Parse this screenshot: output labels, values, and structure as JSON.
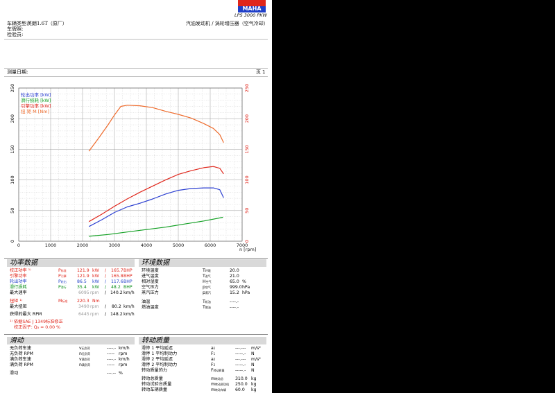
{
  "header": {
    "logo_text": "MAHA",
    "model": "LPS 3000 PKW",
    "vehicle_type_label": "车辆类型:",
    "vehicle_type_value": "英朗1.6T（原厂）",
    "plate_label": "车牌照:",
    "inspector_label": "检验员:",
    "engine_desc": "汽油发动机 / 涡轮增压器（空气冷却）",
    "date_label": "测量日期:",
    "page_label": "页",
    "page_number": "1"
  },
  "chart_data": {
    "type": "line",
    "xlabel": "n [rpm]",
    "xlim": [
      0,
      7000
    ],
    "ylim": [
      0,
      250
    ],
    "x_ticks": [
      "0",
      "1000",
      "2000",
      "3000",
      "4000",
      "5000",
      "6000",
      "7000"
    ],
    "y_ticks_left": [
      "0",
      "50",
      "100",
      "150",
      "200",
      "250"
    ],
    "y_ticks_right": [
      "0",
      "50",
      "100",
      "150",
      "200",
      "250"
    ],
    "grid": true,
    "legend_position": "top-left",
    "series": [
      {
        "name": "轮出功率 [kW]",
        "color": "#2b3fd1",
        "points": [
          [
            2200,
            24
          ],
          [
            2600,
            35
          ],
          [
            3000,
            47
          ],
          [
            3400,
            56
          ],
          [
            3800,
            62
          ],
          [
            4200,
            69
          ],
          [
            4600,
            77
          ],
          [
            5000,
            83
          ],
          [
            5400,
            86
          ],
          [
            5800,
            87
          ],
          [
            6100,
            87
          ],
          [
            6300,
            84
          ],
          [
            6420,
            71
          ]
        ]
      },
      {
        "name": "滑行损耗 [kW]",
        "color": "#13a024",
        "points": [
          [
            2200,
            8
          ],
          [
            2800,
            11
          ],
          [
            3400,
            15
          ],
          [
            4000,
            19
          ],
          [
            4600,
            23
          ],
          [
            5200,
            28
          ],
          [
            5800,
            33
          ],
          [
            6400,
            39
          ]
        ]
      },
      {
        "name": "引擎功率 [kW]",
        "color": "#e0261b",
        "points": [
          [
            2200,
            32
          ],
          [
            2600,
            44
          ],
          [
            3000,
            57
          ],
          [
            3400,
            69
          ],
          [
            3800,
            80
          ],
          [
            4200,
            90
          ],
          [
            4600,
            100
          ],
          [
            5000,
            109
          ],
          [
            5400,
            115
          ],
          [
            5800,
            120
          ],
          [
            6100,
            122
          ],
          [
            6300,
            119
          ],
          [
            6420,
            110
          ]
        ]
      },
      {
        "name": "扭  矩 M [Nm]",
        "color": "#ee6b2c",
        "points": [
          [
            2200,
            147
          ],
          [
            2500,
            168
          ],
          [
            2800,
            190
          ],
          [
            3000,
            206
          ],
          [
            3200,
            220
          ],
          [
            3400,
            222
          ],
          [
            3800,
            221
          ],
          [
            4200,
            218
          ],
          [
            4600,
            212
          ],
          [
            5000,
            207
          ],
          [
            5400,
            201
          ],
          [
            5800,
            192
          ],
          [
            6100,
            184
          ],
          [
            6300,
            174
          ],
          [
            6420,
            161
          ]
        ]
      }
    ]
  },
  "power": {
    "title": "功率数据",
    "rows": [
      {
        "label": "校正功率 ¹⁾",
        "sym": "P",
        "sub": "标准",
        "v1": "121.9",
        "u1": "kW",
        "v2": "165.7",
        "u2": "BHP",
        "cls": "red"
      },
      {
        "label": "引擎功率",
        "sym": "P",
        "sub": "引擎",
        "v1": "121.9",
        "u1": "kW",
        "v2": "165.8",
        "u2": "BHP",
        "cls": "red"
      },
      {
        "label": "轮出功率",
        "sym": "P",
        "sub": "轮出",
        "v1": "86.5",
        "u1": "kW",
        "v2": "117.6",
        "u2": "BHP",
        "cls": "blue"
      },
      {
        "label": "滑行损耗",
        "sym": "P",
        "sub": "滑行",
        "v1": "35.4",
        "u1": "kW",
        "v2": "48.2",
        "u2": "BHP",
        "cls": "green"
      }
    ],
    "max_speed_label": "最大速率",
    "max_speed_rpm": "6095",
    "max_speed_rpm_unit": "rpm",
    "max_speed_val": "140.2",
    "max_speed_unit": "km/h",
    "torque_label": "扭矩 ¹⁾",
    "torque_sym": "M",
    "torque_sub": "标准",
    "torque_val": "220.3",
    "torque_unit": "Nm",
    "max_torque_label": "最大扭矩",
    "max_torque_rpm": "3490",
    "max_torque_rpm_unit": "rpm",
    "max_torque_val": "80.2",
    "max_torque_unit": "km/h",
    "rpm_label": "获得的最大 RPM",
    "rpm_rpm": "6445",
    "rpm_rpm_unit": "rpm",
    "rpm_val": "148.2",
    "rpm_unit": "km/h",
    "note1": "¹⁾ 依据SAE J 1349标准修正",
    "note2": "校正因子: Q",
    "note2_sub": "a",
    "note2_val": "=   0.00 %"
  },
  "env": {
    "title": "环境数据",
    "rows": [
      {
        "label": "环境温度",
        "sym": "T",
        "sub": "环境",
        "val": "20.0",
        "unit": ""
      },
      {
        "label": "进气温度",
        "sym": "T",
        "sub": "进气",
        "val": "21.0",
        "unit": ""
      },
      {
        "label": "相对湿度",
        "sym": "H",
        "sub": "空气",
        "val": "65.0",
        "unit": "%"
      },
      {
        "label": "空气压力",
        "sym": "p",
        "sub": "空气",
        "val": "999.0",
        "unit": "hPa"
      },
      {
        "label": "蒸汽压力",
        "sym": "p",
        "sub": "蒸汽",
        "val": "15.2",
        "unit": "hPa"
      },
      {
        "label": "油温",
        "sym": "T",
        "sub": "机油",
        "val": "----.-",
        "unit": ""
      },
      {
        "label": "燃油温度",
        "sym": "T",
        "sub": "燃油",
        "val": "----.-",
        "unit": ""
      }
    ]
  },
  "slide": {
    "title": "滑动",
    "rows": [
      {
        "label": "无负荷车速",
        "sym": "v",
        "sub": "无负荷",
        "val": "----.-",
        "unit": "km/h"
      },
      {
        "label": "无负荷 RPM",
        "sym": "n",
        "sub": "无负荷",
        "val": "-----",
        "unit": "rpm"
      },
      {
        "label": "满负荷车速",
        "sym": "v",
        "sub": "满负荷",
        "val": "----.-",
        "unit": "km/h"
      },
      {
        "label": "满负荷 RPM",
        "sym": "n",
        "sub": "满负荷",
        "val": "-----",
        "unit": "rpm"
      },
      {
        "label": "滑动",
        "sym": "",
        "sub": "",
        "val": "---.--",
        "unit": "%"
      }
    ]
  },
  "rot": {
    "title": "转动质量",
    "rows": [
      {
        "label": "滑停 1 平均延迟",
        "sym": "a",
        "sub": "1",
        "val": "---.---",
        "unit": "m/s²"
      },
      {
        "label": "滑停 1 平均制动力",
        "sym": "F",
        "sub": "1",
        "val": "-----.-",
        "unit": "N"
      },
      {
        "label": "滑停 2 平均延迟",
        "sym": "a",
        "sub": "2",
        "val": "---.---",
        "unit": "m/s²"
      },
      {
        "label": "滑停 2 平均制动力",
        "sym": "F",
        "sub": "2",
        "val": "-----.-",
        "unit": "N"
      },
      {
        "label": "转动质量的力",
        "sym": "F",
        "sub": "转动质量",
        "val": "-----.-",
        "unit": "N"
      },
      {
        "label": "转动总质量",
        "sym": "m",
        "sub": "转动总",
        "val": "310.0",
        "unit": "kg"
      },
      {
        "label": "转动试验台质量",
        "sym": "m",
        "sub": "转动测功机",
        "val": "250.0",
        "unit": "kg"
      },
      {
        "label": "转动车辆质量",
        "sym": "m",
        "sub": "转动车辆",
        "val": "60.0",
        "unit": "kg"
      }
    ]
  }
}
